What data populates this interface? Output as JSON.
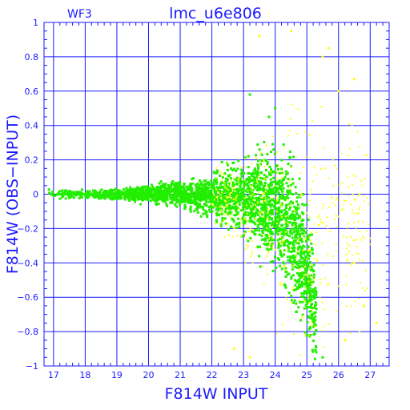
{
  "chart_data": {
    "type": "scatter",
    "chip_label": "WF3",
    "title": "lmc_u6e806",
    "xlabel": "F814W INPUT",
    "ylabel": "F814W (OBS−INPUT)",
    "xlim": [
      16.7,
      27.6
    ],
    "ylim": [
      -1,
      1
    ],
    "x_ticks": [
      17,
      18,
      19,
      20,
      21,
      22,
      23,
      24,
      25,
      26,
      27
    ],
    "y_ticks": [
      -1,
      -0.8,
      -0.6,
      -0.4,
      -0.2,
      0,
      0.2,
      0.4,
      0.6,
      0.8,
      1
    ],
    "x_tick_labels": [
      "17",
      "18",
      "19",
      "20",
      "21",
      "22",
      "23",
      "24",
      "25",
      "26",
      "27"
    ],
    "y_tick_labels": [
      "−1",
      "−0.8",
      "−0.6",
      "−0.4",
      "−0.2",
      "0",
      "0.2",
      "0.4",
      "0.6",
      "0.8",
      "1"
    ],
    "grid": true,
    "colors": {
      "axes": "#1a1aff",
      "grid": "#1a1aff",
      "recovered": "#22ee00",
      "other": "#ffff22"
    },
    "series": [
      {
        "color_key": "recovered",
        "envelope": [
          {
            "x": 16.8,
            "center": 0.0,
            "spread": 0.02
          },
          {
            "x": 18.0,
            "center": 0.0,
            "spread": 0.02
          },
          {
            "x": 19.0,
            "center": 0.0,
            "spread": 0.025
          },
          {
            "x": 20.0,
            "center": 0.0,
            "spread": 0.04
          },
          {
            "x": 21.0,
            "center": 0.0,
            "spread": 0.06
          },
          {
            "x": 22.0,
            "center": -0.01,
            "spread": 0.1
          },
          {
            "x": 23.0,
            "center": -0.02,
            "spread": 0.18
          },
          {
            "x": 23.5,
            "center": -0.04,
            "spread": 0.24
          },
          {
            "x": 24.0,
            "center": -0.08,
            "spread": 0.3
          },
          {
            "x": 24.5,
            "center": -0.2,
            "spread": 0.32
          },
          {
            "x": 25.0,
            "center": -0.45,
            "spread": 0.3
          },
          {
            "x": 25.3,
            "center": -0.7,
            "spread": 0.25
          }
        ],
        "outliers": [
          [
            23.2,
            0.58
          ],
          [
            24.0,
            0.5
          ],
          [
            23.8,
            0.45
          ],
          [
            25.3,
            -0.92
          ],
          [
            25.5,
            -0.95
          ]
        ]
      },
      {
        "color_key": "other",
        "envelope": [
          {
            "x": 22.0,
            "center": -0.05,
            "spread": 0.15
          },
          {
            "x": 23.0,
            "center": -0.05,
            "spread": 0.25
          },
          {
            "x": 24.0,
            "center": -0.1,
            "spread": 0.45
          },
          {
            "x": 25.0,
            "center": -0.3,
            "spread": 0.6
          },
          {
            "x": 26.0,
            "center": -0.2,
            "spread": 0.6
          },
          {
            "x": 27.0,
            "center": -0.3,
            "spread": 0.5
          }
        ],
        "outliers": [
          [
            23.5,
            0.92
          ],
          [
            24.5,
            0.95
          ],
          [
            25.7,
            0.85
          ],
          [
            25.5,
            0.8
          ],
          [
            26.5,
            0.67
          ],
          [
            26.8,
            -0.65
          ],
          [
            27.2,
            -0.75
          ],
          [
            26.2,
            -0.85
          ],
          [
            23.2,
            -0.95
          ],
          [
            22.7,
            -0.9
          ],
          [
            24.3,
            -0.42
          ],
          [
            26.5,
            -0.4
          ],
          [
            26.0,
            0.6
          ]
        ]
      }
    ]
  }
}
